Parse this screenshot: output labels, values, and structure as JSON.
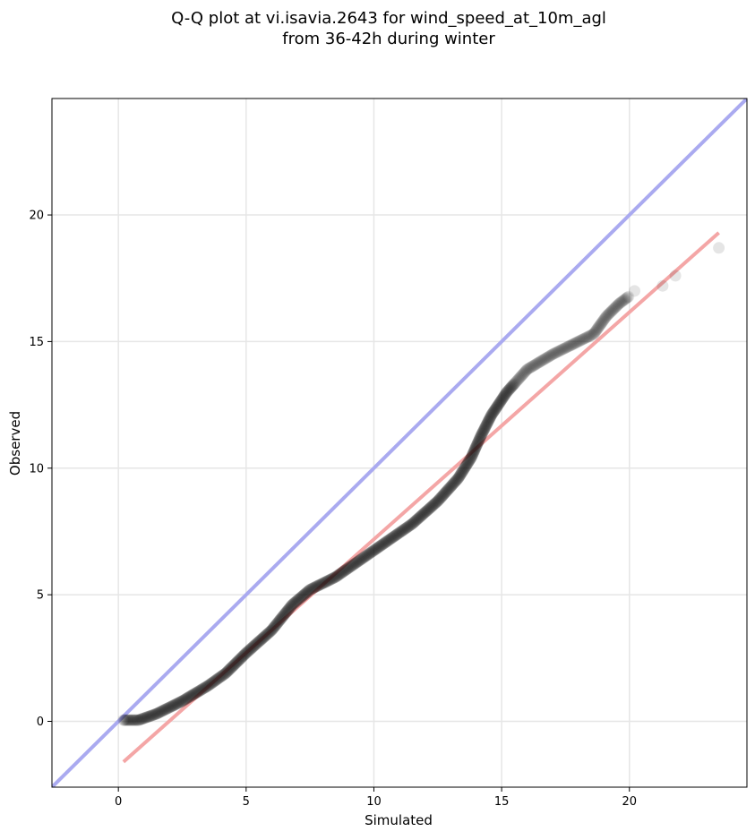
{
  "chart_data": {
    "type": "scatter",
    "title_lines": [
      "Q-Q plot at vi.isavia.2643 for wind_speed_at_10m_agl",
      "from 36-42h during winter"
    ],
    "xlabel": "Simulated",
    "ylabel": "Observed",
    "xlim": [
      -2.6,
      24.6
    ],
    "ylim": [
      -2.6,
      24.6
    ],
    "x_ticks": [
      0,
      5,
      10,
      15,
      20
    ],
    "y_ticks": [
      0,
      5,
      10,
      15,
      20
    ],
    "x_tick_labels": [
      "0",
      "5",
      "10",
      "15",
      "20"
    ],
    "y_tick_labels": [
      "0",
      "5",
      "10",
      "15",
      "20"
    ],
    "grid": true,
    "reference_line": {
      "color": "#aaaaf0",
      "points": [
        [
          -2.6,
          -2.6
        ],
        [
          24.6,
          24.6
        ]
      ]
    },
    "fit_line": {
      "color": "#f4a6a6",
      "points": [
        [
          0.2,
          -1.6
        ],
        [
          23.5,
          19.3
        ]
      ]
    },
    "point_color": "#000000",
    "quantile_curve": [
      [
        0.2,
        0.05
      ],
      [
        0.8,
        0.05
      ],
      [
        1.5,
        0.3
      ],
      [
        2.5,
        0.8
      ],
      [
        3.5,
        1.4
      ],
      [
        4.2,
        1.9
      ],
      [
        5.0,
        2.7
      ],
      [
        6.0,
        3.6
      ],
      [
        6.8,
        4.6
      ],
      [
        7.5,
        5.2
      ],
      [
        8.5,
        5.7
      ],
      [
        9.5,
        6.4
      ],
      [
        10.5,
        7.1
      ],
      [
        11.5,
        7.8
      ],
      [
        12.5,
        8.7
      ],
      [
        13.3,
        9.6
      ],
      [
        13.8,
        10.4
      ],
      [
        14.2,
        11.3
      ],
      [
        14.6,
        12.1
      ],
      [
        15.2,
        13.0
      ],
      [
        16.0,
        13.9
      ],
      [
        17.0,
        14.5
      ],
      [
        18.0,
        15.0
      ],
      [
        18.6,
        15.3
      ],
      [
        19.1,
        16.0
      ],
      [
        19.6,
        16.5
      ],
      [
        20.0,
        16.8
      ]
    ],
    "outliers": [
      [
        20.2,
        17.0
      ],
      [
        21.3,
        17.2
      ],
      [
        21.8,
        17.6
      ],
      [
        23.5,
        18.7
      ]
    ]
  }
}
